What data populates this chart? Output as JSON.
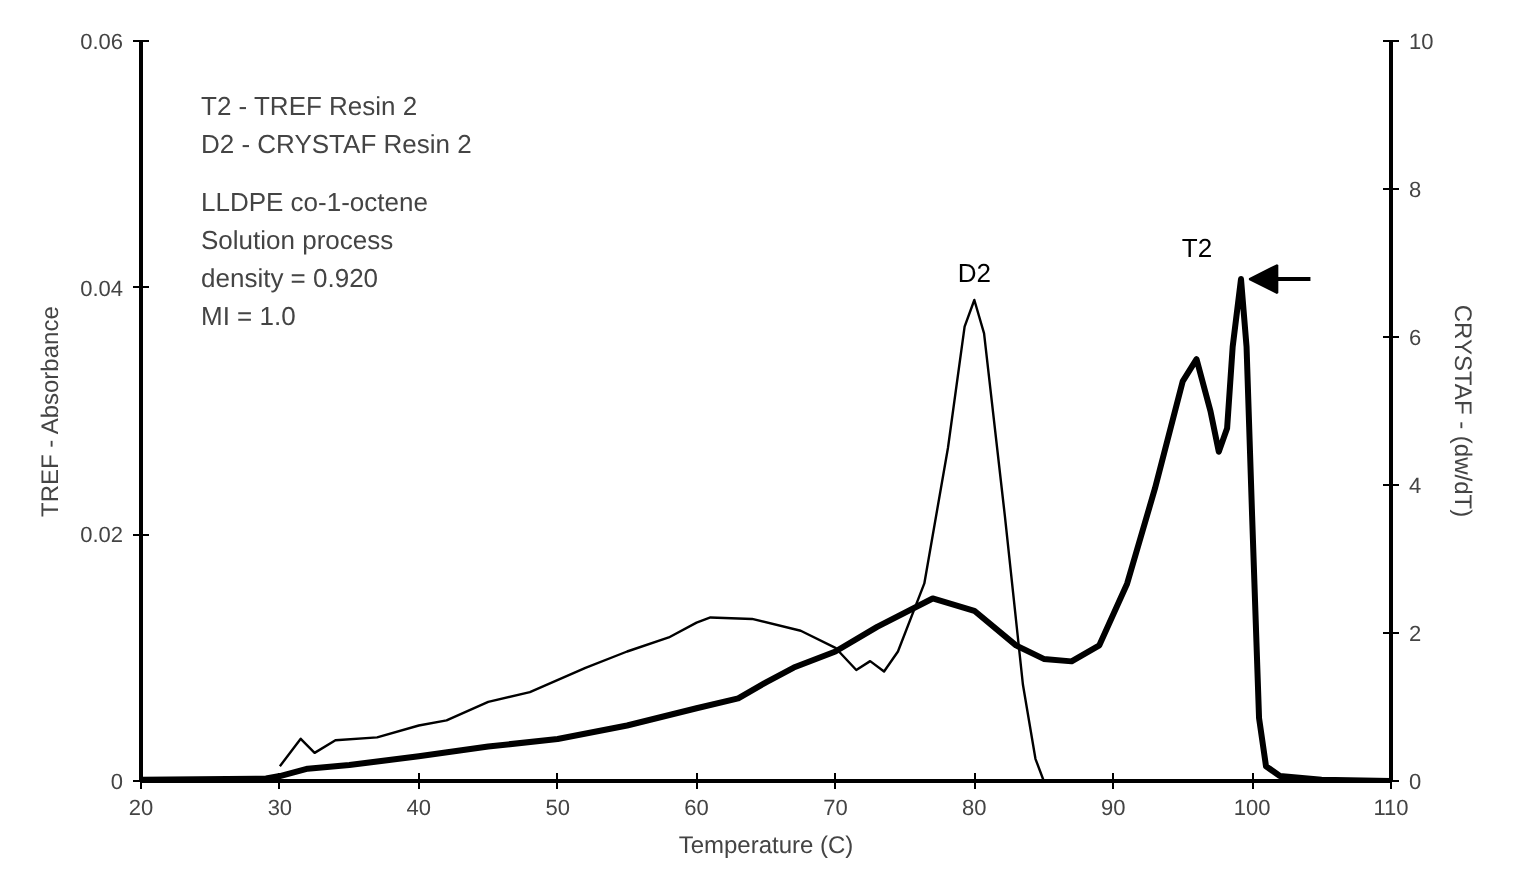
{
  "chart_data": {
    "type": "line",
    "xlabel": "Temperature (C)",
    "ylabel": "TREF - Absorbance",
    "y2label": "CRYSTAF - (dw/dT)",
    "xlim": [
      20,
      110
    ],
    "xticks": [
      20,
      30,
      40,
      50,
      60,
      70,
      80,
      90,
      100,
      110
    ],
    "ylim": [
      0,
      0.06
    ],
    "yticks": [
      0,
      0.02,
      0.04,
      0.06
    ],
    "y2lim": [
      0,
      10
    ],
    "y2ticks": [
      0,
      2,
      4,
      6,
      8,
      10
    ],
    "grid": false,
    "marker": "none",
    "line_style": "solid",
    "annotations": [
      "T2 - TREF Resin 2",
      "D2 - CRYSTAF Resin 2",
      "LLDPE co-1-octene",
      "Solution process",
      "density = 0.920",
      "MI = 1.0"
    ],
    "series": [
      {
        "name": "T2",
        "color": "#000000",
        "x": [
          20,
          29,
          30,
          32,
          35,
          40,
          45,
          50,
          55,
          60,
          63,
          65,
          67,
          70,
          73,
          77,
          80,
          83,
          85,
          87,
          89,
          91,
          93,
          95,
          96,
          97,
          97.6,
          98.2,
          98.6,
          99.2,
          99.6,
          100,
          100.5,
          101,
          102,
          105,
          110
        ],
        "values": [
          0.0001,
          0.0002,
          0.0004,
          0.001,
          0.0013,
          0.002,
          0.0028,
          0.0034,
          0.0045,
          0.0059,
          0.0067,
          0.008,
          0.0092,
          0.0105,
          0.0125,
          0.0148,
          0.0138,
          0.011,
          0.0099,
          0.0097,
          0.011,
          0.016,
          0.0237,
          0.0324,
          0.0342,
          0.03,
          0.0267,
          0.0286,
          0.0352,
          0.0407,
          0.0352,
          0.0215,
          0.0051,
          0.0012,
          0.0004,
          0.0001,
          0
        ]
      },
      {
        "name": "D2",
        "color": "#000000",
        "axis": "y2",
        "x": [
          30,
          31.5,
          32.5,
          34,
          37,
          40,
          42,
          45,
          48,
          52,
          55,
          58,
          60,
          61,
          64,
          67.5,
          70,
          71.5,
          72.5,
          73.5,
          74.5,
          76.4,
          78.1,
          79.3,
          80,
          80.7,
          82.2,
          83.5,
          84.4,
          85
        ],
        "values": [
          0.2,
          0.57,
          0.38,
          0.55,
          0.59,
          0.75,
          0.82,
          1.07,
          1.2,
          1.53,
          1.75,
          1.94,
          2.14,
          2.21,
          2.19,
          2.03,
          1.8,
          1.5,
          1.62,
          1.48,
          1.75,
          2.67,
          4.5,
          6.14,
          6.5,
          6.05,
          3.58,
          1.3,
          0.3,
          0
        ]
      }
    ]
  }
}
